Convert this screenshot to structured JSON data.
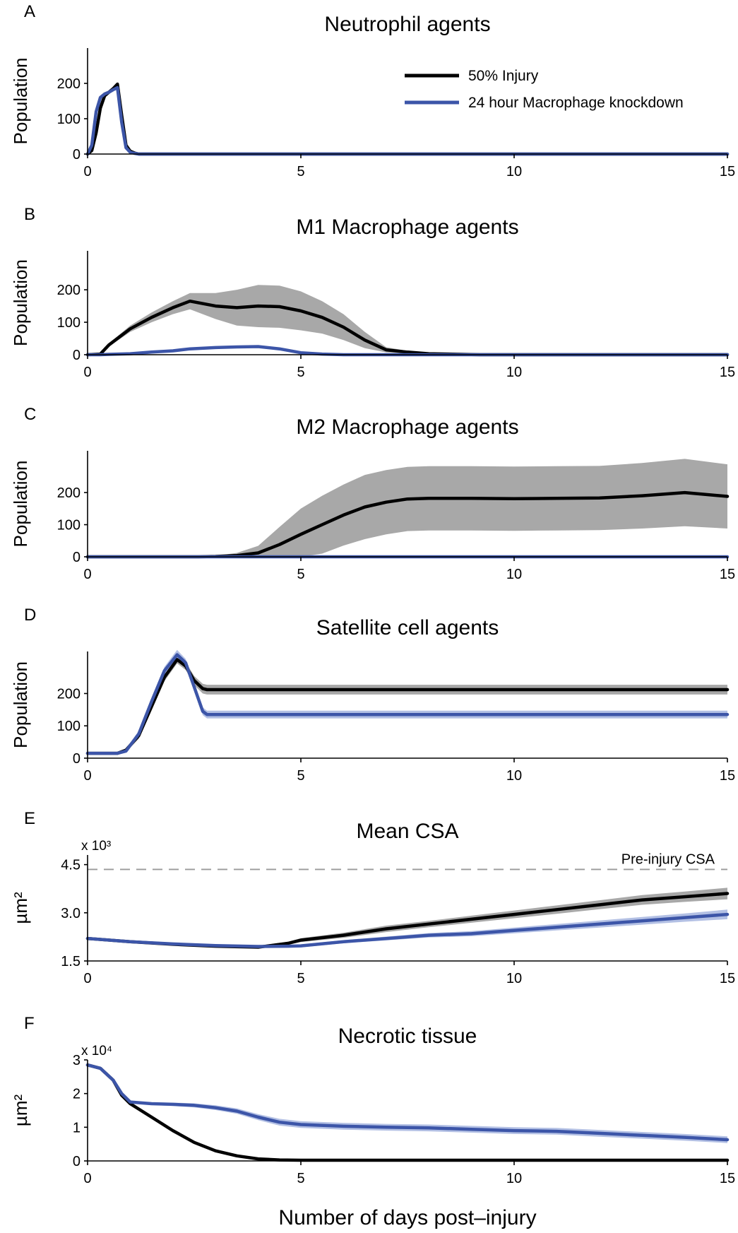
{
  "figure": {
    "xlabel": "Number of days post–injury",
    "colors": {
      "injury_line": "#000000",
      "injury_band": "#a8a8a8",
      "knockdown_line": "#3c55a8",
      "knockdown_band": "#b3c0e4",
      "reference": "#9a9a9a"
    }
  },
  "legend": {
    "entries": [
      {
        "label": "50% Injury",
        "color": "#000000"
      },
      {
        "label": "24 hour Macrophage knockdown",
        "color": "#3c55a8"
      }
    ]
  },
  "chart_data": [
    {
      "panel": "A",
      "type": "line",
      "title": "Neutrophil agents",
      "ylabel": "Population",
      "xlabel": "",
      "xlim": [
        0,
        15
      ],
      "ylim": [
        0,
        300
      ],
      "xticks": [
        "0",
        "5",
        "10",
        "15"
      ],
      "yticks": [
        {
          "value": 0,
          "label": "0"
        },
        {
          "value": 100,
          "label": "100"
        },
        {
          "value": 200,
          "label": "200"
        }
      ],
      "x": [
        0,
        0.1,
        0.2,
        0.3,
        0.4,
        0.5,
        0.6,
        0.7,
        0.8,
        0.9,
        1.0,
        1.1,
        1.2,
        1.4,
        15
      ],
      "series": [
        {
          "name": "50% Injury",
          "color": "#000000",
          "band": 0,
          "values": [
            0,
            10,
            60,
            130,
            165,
            175,
            185,
            198,
            110,
            25,
            8,
            3,
            0,
            0,
            0
          ]
        },
        {
          "name": "24 hour Macrophage knockdown",
          "color": "#3c55a8",
          "band": 0,
          "values": [
            0,
            25,
            120,
            160,
            170,
            175,
            182,
            188,
            90,
            18,
            5,
            2,
            0,
            0,
            0
          ]
        }
      ]
    },
    {
      "panel": "B",
      "type": "line",
      "title": "M1 Macrophage agents",
      "ylabel": "Population",
      "xlabel": "",
      "xlim": [
        0,
        15
      ],
      "ylim": [
        0,
        320
      ],
      "xticks": [
        "0",
        "5",
        "10",
        "15"
      ],
      "yticks": [
        {
          "value": 0,
          "label": "0"
        },
        {
          "value": 100,
          "label": "100"
        },
        {
          "value": 200,
          "label": "200"
        }
      ],
      "x": [
        0,
        0.3,
        0.5,
        1.0,
        1.5,
        2.0,
        2.4,
        3.0,
        3.5,
        4.0,
        4.5,
        5.0,
        5.5,
        6.0,
        6.5,
        7.0,
        7.5,
        8.0,
        9.2,
        15
      ],
      "series": [
        {
          "name": "50% Injury",
          "color": "#000000",
          "values": [
            0,
            2,
            30,
            80,
            115,
            145,
            165,
            150,
            145,
            150,
            148,
            135,
            115,
            85,
            45,
            15,
            8,
            3,
            0,
            0
          ],
          "band": [
            0,
            1,
            5,
            10,
            15,
            20,
            25,
            40,
            55,
            65,
            65,
            60,
            50,
            40,
            25,
            8,
            4,
            2,
            0,
            0
          ]
        },
        {
          "name": "24 hour Macrophage knockdown",
          "color": "#3c55a8",
          "band": 0,
          "values": [
            0,
            0,
            1,
            3,
            8,
            12,
            18,
            22,
            24,
            25,
            18,
            6,
            2,
            0,
            0,
            0,
            0,
            0,
            0,
            0
          ]
        }
      ]
    },
    {
      "panel": "C",
      "type": "line",
      "title": "M2 Macrophage agents",
      "ylabel": "Population",
      "xlabel": "",
      "xlim": [
        0,
        15
      ],
      "ylim": [
        0,
        330
      ],
      "xticks": [
        "0",
        "5",
        "10",
        "15"
      ],
      "yticks": [
        {
          "value": 0,
          "label": "0"
        },
        {
          "value": 100,
          "label": "100"
        },
        {
          "value": 200,
          "label": "200"
        }
      ],
      "x": [
        0,
        2.6,
        3.0,
        3.5,
        4.0,
        4.5,
        5.0,
        5.5,
        6.0,
        6.5,
        7.0,
        7.5,
        8.0,
        9.0,
        10.0,
        11.0,
        12.0,
        13.0,
        14.0,
        15
      ],
      "series": [
        {
          "name": "50% Injury",
          "color": "#000000",
          "values": [
            0,
            0,
            1,
            4,
            12,
            38,
            70,
            100,
            130,
            155,
            170,
            180,
            182,
            182,
            181,
            182,
            183,
            190,
            200,
            188
          ],
          "band": [
            0,
            0,
            2,
            8,
            22,
            55,
            80,
            90,
            95,
            100,
            100,
            100,
            100,
            100,
            100,
            100,
            100,
            102,
            105,
            100
          ]
        },
        {
          "name": "24 hour Macrophage knockdown",
          "color": "#3c55a8",
          "band": 0,
          "values": [
            0,
            0,
            0,
            0,
            0,
            0,
            0,
            0,
            0,
            0,
            0,
            0,
            0,
            0,
            0,
            0,
            0,
            0,
            0,
            0
          ]
        }
      ]
    },
    {
      "panel": "D",
      "type": "line",
      "title": "Satellite cell agents",
      "ylabel": "Population",
      "xlabel": "",
      "xlim": [
        0,
        15
      ],
      "ylim": [
        0,
        330
      ],
      "xticks": [
        "0",
        "5",
        "10",
        "15"
      ],
      "yticks": [
        {
          "value": 0,
          "label": "0"
        },
        {
          "value": 100,
          "label": "100"
        },
        {
          "value": 200,
          "label": "200"
        }
      ],
      "x": [
        0,
        0.7,
        0.9,
        1.2,
        1.5,
        1.8,
        2.1,
        2.3,
        2.5,
        2.7,
        2.8,
        15
      ],
      "series": [
        {
          "name": "50% Injury",
          "color": "#000000",
          "values": [
            15,
            15,
            25,
            70,
            160,
            250,
            305,
            285,
            240,
            215,
            212,
            212
          ],
          "band": [
            3,
            3,
            5,
            10,
            12,
            12,
            12,
            12,
            14,
            15,
            15,
            15
          ]
        },
        {
          "name": "24 hour Macrophage knockdown",
          "color": "#3c55a8",
          "values": [
            15,
            15,
            22,
            75,
            175,
            270,
            320,
            295,
            220,
            145,
            135,
            135
          ],
          "band": [
            3,
            3,
            5,
            10,
            12,
            12,
            15,
            12,
            12,
            12,
            12,
            12
          ]
        }
      ]
    },
    {
      "panel": "E",
      "type": "line",
      "title": "Mean CSA",
      "ylabel": "µm²",
      "xlabel": "",
      "multiplier": "x 10³",
      "xlim": [
        0,
        15
      ],
      "ylim": [
        1500,
        4800
      ],
      "xticks": [
        "0",
        "5",
        "10",
        "15"
      ],
      "yticks": [
        {
          "value": 1500,
          "label": "1.5"
        },
        {
          "value": 3000,
          "label": "3.0"
        },
        {
          "value": 4500,
          "label": "4.5"
        }
      ],
      "reference": {
        "label": "Pre-injury CSA",
        "value": 4350
      },
      "x": [
        0,
        1,
        2,
        3,
        4,
        4.7,
        5,
        6,
        7,
        8,
        9,
        10,
        11,
        12,
        13,
        14,
        15
      ],
      "series": [
        {
          "name": "50% Injury",
          "color": "#000000",
          "values": [
            2200,
            2100,
            2020,
            1960,
            1930,
            2050,
            2150,
            2300,
            2500,
            2650,
            2800,
            2950,
            3100,
            3250,
            3400,
            3500,
            3600
          ],
          "band": [
            40,
            40,
            40,
            40,
            40,
            50,
            60,
            80,
            100,
            100,
            110,
            120,
            130,
            140,
            150,
            160,
            180
          ]
        },
        {
          "name": "24 hour Macrophage knockdown",
          "color": "#3c55a8",
          "values": [
            2200,
            2100,
            2030,
            1980,
            1950,
            1960,
            1970,
            2100,
            2200,
            2300,
            2350,
            2450,
            2550,
            2650,
            2750,
            2850,
            2950
          ],
          "band": [
            40,
            40,
            40,
            40,
            40,
            40,
            45,
            50,
            60,
            70,
            80,
            90,
            100,
            110,
            120,
            130,
            150
          ]
        }
      ]
    },
    {
      "panel": "F",
      "type": "line",
      "title": "Necrotic tissue",
      "ylabel": "µm²",
      "xlabel": "Number of days post–injury",
      "multiplier": "x 10⁴",
      "xlim": [
        0,
        15
      ],
      "ylim": [
        0,
        30000
      ],
      "xticks": [
        "0",
        "5",
        "10",
        "15"
      ],
      "yticks": [
        {
          "value": 0,
          "label": "0"
        },
        {
          "value": 10000,
          "label": "1"
        },
        {
          "value": 20000,
          "label": "2"
        },
        {
          "value": 30000,
          "label": "3"
        }
      ],
      "x": [
        0,
        0.3,
        0.6,
        0.8,
        1.0,
        1.5,
        2.0,
        2.5,
        3.0,
        3.5,
        4.0,
        4.5,
        5,
        6,
        7,
        8,
        9,
        10,
        11,
        12,
        13,
        14,
        15
      ],
      "series": [
        {
          "name": "50% Injury",
          "color": "#000000",
          "values": [
            28500,
            27500,
            24000,
            19500,
            17000,
            13000,
            9000,
            5500,
            3000,
            1500,
            600,
            300,
            200,
            200,
            200,
            200,
            200,
            200,
            200,
            200,
            200,
            200,
            200
          ],
          "band": [
            300,
            300,
            300,
            300,
            300,
            300,
            300,
            300,
            300,
            300,
            200,
            150,
            100,
            100,
            100,
            100,
            100,
            100,
            100,
            100,
            100,
            100,
            100
          ]
        },
        {
          "name": "24 hour Macrophage knockdown",
          "color": "#3c55a8",
          "values": [
            28500,
            27500,
            24000,
            20000,
            17500,
            17000,
            16800,
            16500,
            15800,
            14800,
            13000,
            11500,
            10800,
            10300,
            10000,
            9800,
            9400,
            9000,
            8800,
            8200,
            7600,
            7000,
            6300
          ],
          "band": [
            300,
            300,
            300,
            300,
            300,
            400,
            500,
            600,
            700,
            800,
            900,
            1000,
            1000,
            1000,
            1000,
            1000,
            1000,
            1000,
            1000,
            1000,
            1000,
            1000,
            1000
          ]
        }
      ]
    }
  ]
}
